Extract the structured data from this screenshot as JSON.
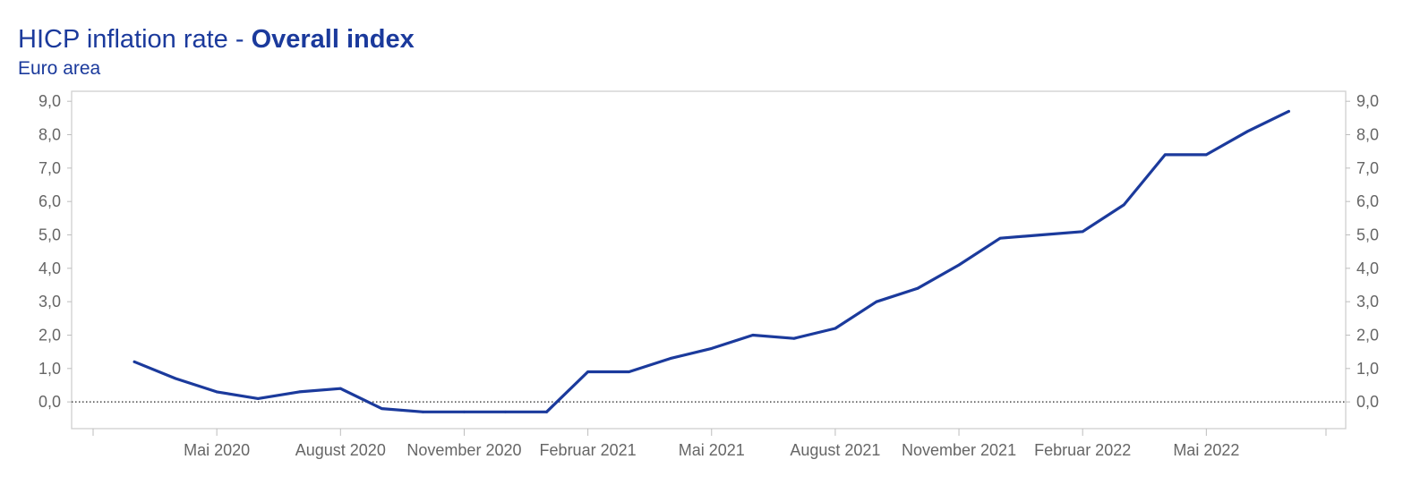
{
  "chart_data": {
    "type": "line",
    "title": "HICP inflation rate - ",
    "title_bold": "Overall index",
    "subtitle": "Euro area",
    "xlabel": "",
    "ylabel": "",
    "ylim": [
      -0.8,
      9.3
    ],
    "yticks": [
      "0,0",
      "1,0",
      "2,0",
      "3,0",
      "4,0",
      "5,0",
      "6,0",
      "7,0",
      "8,0",
      "9,0"
    ],
    "ytick_values": [
      0,
      1,
      2,
      3,
      4,
      5,
      6,
      7,
      8,
      9
    ],
    "xticks": [
      {
        "label": "Mai 2020",
        "month": "2020-05"
      },
      {
        "label": "August 2020",
        "month": "2020-08"
      },
      {
        "label": "November 2020",
        "month": "2020-11"
      },
      {
        "label": "Februar 2021",
        "month": "2021-02"
      },
      {
        "label": "Mai 2021",
        "month": "2021-05"
      },
      {
        "label": "August 2021",
        "month": "2021-08"
      },
      {
        "label": "November 2021",
        "month": "2021-11"
      },
      {
        "label": "Februar 2022",
        "month": "2022-02"
      },
      {
        "label": "Mai 2022",
        "month": "2022-05"
      }
    ],
    "reference_line": {
      "y": 0,
      "style": "dotted"
    },
    "grid": false,
    "color": "#1b3a9c",
    "series": [
      {
        "points": [
          {
            "x": "2020-03",
            "y": 1.2
          },
          {
            "x": "2020-04",
            "y": 0.7
          },
          {
            "x": "2020-05",
            "y": 0.3
          },
          {
            "x": "2020-06",
            "y": 0.1
          },
          {
            "x": "2020-07",
            "y": 0.3
          },
          {
            "x": "2020-08",
            "y": 0.4
          },
          {
            "x": "2020-09",
            "y": -0.2
          },
          {
            "x": "2020-10",
            "y": -0.3
          },
          {
            "x": "2020-11",
            "y": -0.3
          },
          {
            "x": "2020-12",
            "y": -0.3
          },
          {
            "x": "2021-01",
            "y": -0.3
          },
          {
            "x": "2021-02",
            "y": 0.9
          },
          {
            "x": "2021-03",
            "y": 0.9
          },
          {
            "x": "2021-04",
            "y": 1.3
          },
          {
            "x": "2021-05",
            "y": 1.6
          },
          {
            "x": "2021-06",
            "y": 2.0
          },
          {
            "x": "2021-07",
            "y": 1.9
          },
          {
            "x": "2021-08",
            "y": 2.2
          },
          {
            "x": "2021-09",
            "y": 3.0
          },
          {
            "x": "2021-10",
            "y": 3.4
          },
          {
            "x": "2021-11",
            "y": 4.1
          },
          {
            "x": "2021-12",
            "y": 4.9
          },
          {
            "x": "2022-01",
            "y": 5.0
          },
          {
            "x": "2022-02",
            "y": 5.1
          },
          {
            "x": "2022-03",
            "y": 5.9
          },
          {
            "x": "2022-04",
            "y": 7.4
          },
          {
            "x": "2022-05",
            "y": 7.4
          },
          {
            "x": "2022-06",
            "y": 8.1
          },
          {
            "x": "2022-07",
            "y": 8.7
          }
        ]
      }
    ]
  }
}
